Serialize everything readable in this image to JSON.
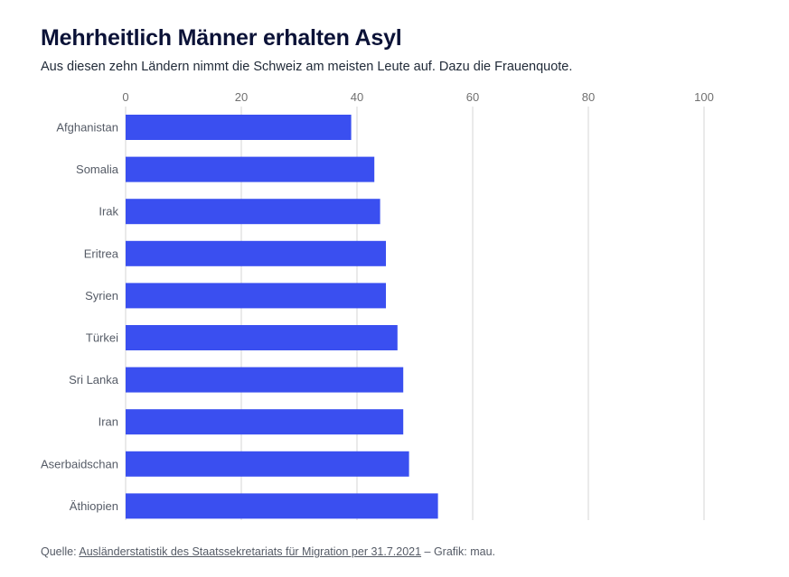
{
  "title": "Mehrheitlich Männer erhalten Asyl",
  "subtitle": "Aus diesen zehn Ländern nimmt die Schweiz am meisten Leute auf. Dazu die Frauenquote.",
  "source": {
    "prefix": "Quelle: ",
    "link_text": "Ausländerstatistik des Staatssekretariats für Migration per 31.7.2021",
    "suffix": " – Grafik: mau."
  },
  "colors": {
    "bar": "#3a4ff0",
    "grid": "#d4d4d4",
    "axis_text": "#707070"
  },
  "chart_data": {
    "type": "bar",
    "orientation": "horizontal",
    "title": "Mehrheitlich Männer erhalten Asyl",
    "subtitle": "Aus diesen zehn Ländern nimmt die Schweiz am meisten Leute auf. Dazu die Frauenquote.",
    "xlabel": "",
    "ylabel": "",
    "xlim": [
      0,
      100
    ],
    "x_ticks": [
      0,
      20,
      40,
      60,
      80,
      100
    ],
    "x_axis_position": "top",
    "grid": true,
    "categories": [
      "Afghanistan",
      "Somalia",
      "Irak",
      "Eritrea",
      "Syrien",
      "Türkei",
      "Sri Lanka",
      "Iran",
      "Aserbaidschan",
      "Äthiopien"
    ],
    "values": [
      39,
      43,
      44,
      45,
      45,
      47,
      48,
      48,
      49,
      54
    ]
  }
}
